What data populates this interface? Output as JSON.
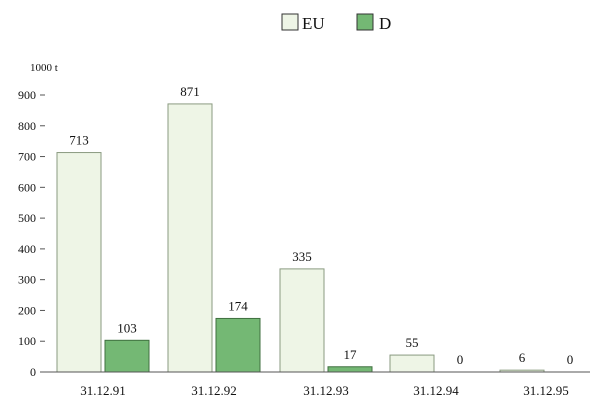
{
  "chart_data": {
    "type": "bar",
    "title": "",
    "xlabel": "",
    "ylabel": "",
    "unit_label": "1000 t",
    "categories": [
      "31.12.91",
      "31.12.92",
      "31.12.93",
      "31.12.94",
      "31.12.95"
    ],
    "series": [
      {
        "name": "EU",
        "values": [
          713,
          871,
          335,
          55,
          6
        ],
        "color": "#eef5e6",
        "stroke": "#8a9a80"
      },
      {
        "name": "D",
        "values": [
          103,
          174,
          17,
          0,
          0
        ],
        "color": "#74b874",
        "stroke": "#3f6f3f"
      }
    ],
    "data_labels": [
      [
        "713",
        "871",
        "335",
        "55",
        "6"
      ],
      [
        "103",
        "174",
        "17",
        "0",
        "0"
      ]
    ],
    "yticks": [
      "0",
      "100",
      "200",
      "300",
      "400",
      "500",
      "600",
      "700",
      "800",
      "900"
    ],
    "ylim": [
      0,
      900
    ],
    "grid": false,
    "legend_position": "top-center"
  }
}
